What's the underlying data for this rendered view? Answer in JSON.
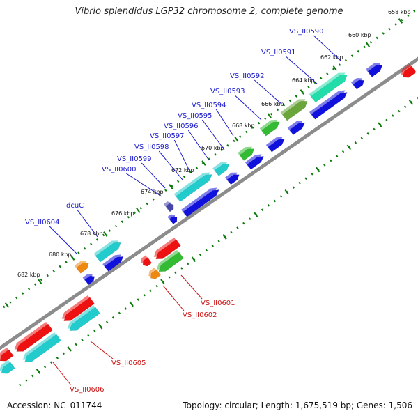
{
  "title": "Vibrio splendidus LGP32 chromosome 2, complete genome",
  "footer": {
    "accession": "Accession: NC_011744",
    "summary": "Topology: circular; Length: 1,675,519 bp; Genes: 1,506"
  },
  "colors": {
    "backbone": "#8c8c8c",
    "tick": "#0a7a0a",
    "label_forward": "#1a1acc",
    "label_reverse": "#cc1111",
    "gene_blue": "#1111dd",
    "gene_cyan": "#22cccc",
    "gene_green": "#33bb33",
    "gene_teal": "#22ddaa",
    "gene_red": "#ee1111",
    "gene_orange": "#ee8811"
  },
  "ticks": {
    "inner": [
      "658 kbp",
      "660 kbp",
      "662 kbp",
      "664 kbp",
      "666 kbp",
      "668 kbp",
      "670 kbp",
      "672 kbp",
      "674 kbp",
      "676 kbp",
      "678 kbp",
      "680 kbp",
      "682 kbp"
    ]
  },
  "genes_top": [
    "VS_II0590",
    "VS_II0591",
    "VS_II0592",
    "VS_II0593",
    "VS_II0594",
    "VS_II0595",
    "VS_II0596",
    "VS_II0597",
    "VS_II0598",
    "VS_II0599",
    "VS_II0600",
    "dcuC",
    "VS_II0604"
  ],
  "genes_bottom": [
    "VS_II0601",
    "VS_II0602",
    "VS_II0605",
    "VS_II0606"
  ]
}
